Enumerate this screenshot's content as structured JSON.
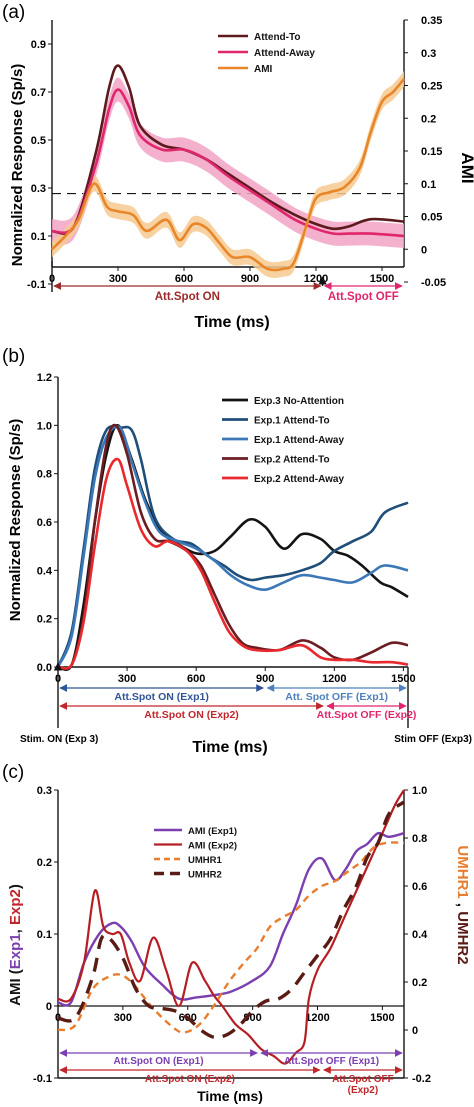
{
  "colors": {
    "dark_red": "#5c1a1d",
    "pink": "#e0266d",
    "pink_band": "#f1a3c4",
    "orange": "#e8862a",
    "orange_band": "#f7c98f",
    "black": "#141414",
    "navy": "#1f4e79",
    "steel": "#3c78b8",
    "maroon": "#6b1d21",
    "red": "#e8292e",
    "purple": "#7b3fb0",
    "crimson": "#b51f24",
    "orange_dash": "#e97d2f",
    "brown_dash": "#5a1b15",
    "att_on_blue": "#2f5597",
    "att_off_blue": "#4f81bd",
    "att_red": "#c0272d"
  },
  "chart_data": [
    {
      "panel": "(a)",
      "type": "line",
      "xlabel": "Time (ms)",
      "ylabel": "Nomralized Response (Sp/s)",
      "ylabel_right": "AMI",
      "xlim": [
        0,
        1600
      ],
      "ylim": [
        -0.1,
        1.0
      ],
      "ylim_right": [
        -0.05,
        0.35
      ],
      "x_ticks": [
        "0",
        "300",
        "600",
        "900",
        "1200",
        "1500"
      ],
      "x_tick_values": [
        0,
        300,
        600,
        900,
        1200,
        1500
      ],
      "y_ticks": [
        "-0.1",
        "0.1",
        "0.3",
        "0.5",
        "0.7",
        "0.9"
      ],
      "y_tick_values": [
        -0.1,
        0.1,
        0.3,
        0.5,
        0.7,
        0.9
      ],
      "y_right_ticks": [
        "-0.05",
        "0",
        "0.05",
        "0.1",
        "0.15",
        "0.2",
        "0.25",
        "0.3",
        "0.35"
      ],
      "y_right_tick_values": [
        -0.05,
        0,
        0.05,
        0.1,
        0.15,
        0.2,
        0.25,
        0.3,
        0.35
      ],
      "dashed_line_right": 0.085,
      "grid": false,
      "legend_position": "top-right",
      "series": [
        {
          "name": "Attend-To",
          "color": "#5c1a1d",
          "axis": "left",
          "x": [
            0,
            100,
            200,
            260,
            300,
            350,
            400,
            500,
            600,
            700,
            800,
            900,
            1000,
            1100,
            1200,
            1280,
            1350,
            1450,
            1600
          ],
          "y": [
            0.12,
            0.14,
            0.45,
            0.72,
            0.81,
            0.72,
            0.56,
            0.48,
            0.46,
            0.42,
            0.36,
            0.3,
            0.24,
            0.19,
            0.15,
            0.13,
            0.14,
            0.17,
            0.16
          ],
          "band": 0.0
        },
        {
          "name": "Attend-Away",
          "color": "#e0266d",
          "axis": "left",
          "x": [
            0,
            100,
            200,
            260,
            300,
            350,
            400,
            500,
            600,
            700,
            800,
            900,
            1000,
            1100,
            1200,
            1280,
            1350,
            1450,
            1600
          ],
          "y": [
            0.12,
            0.14,
            0.4,
            0.63,
            0.71,
            0.64,
            0.52,
            0.46,
            0.46,
            0.42,
            0.35,
            0.29,
            0.23,
            0.17,
            0.13,
            0.11,
            0.11,
            0.11,
            0.1
          ],
          "band": 0.05
        },
        {
          "name": "AMI",
          "color": "#e8862a",
          "axis": "right",
          "x": [
            0,
            60,
            120,
            190,
            250,
            300,
            370,
            430,
            520,
            580,
            640,
            700,
            760,
            820,
            900,
            980,
            1050,
            1100,
            1160,
            1200,
            1260,
            1330,
            1400,
            1450,
            1500,
            1550,
            1600
          ],
          "y": [
            0.0,
            0.02,
            0.045,
            0.1,
            0.065,
            0.058,
            0.052,
            0.028,
            0.045,
            0.014,
            0.038,
            0.033,
            0.01,
            -0.012,
            -0.012,
            -0.03,
            -0.03,
            -0.02,
            0.04,
            0.078,
            0.087,
            0.095,
            0.125,
            0.18,
            0.225,
            0.24,
            0.26
          ],
          "band": 0.012
        }
      ],
      "annotations": [
        {
          "text": "Att.Spot ON",
          "color": "#9c2a2a",
          "from": 0,
          "to": 1230
        },
        {
          "text": "Att.Spot OFF",
          "color": "#e0266d",
          "from": 1230,
          "to": 1600
        }
      ]
    },
    {
      "panel": "(b)",
      "type": "line",
      "xlabel": "Time (ms)",
      "ylabel": "Normalized Response (Sp/s)",
      "xlim": [
        0,
        1520
      ],
      "ylim": [
        0,
        1.2
      ],
      "x_ticks": [
        "0",
        "300",
        "600",
        "900",
        "1200",
        "1500"
      ],
      "x_tick_values": [
        0,
        300,
        600,
        900,
        1200,
        1500
      ],
      "y_ticks": [
        "0.0",
        "0.2",
        "0.4",
        "0.6",
        "0.8",
        "1.0",
        "1.2"
      ],
      "y_tick_values": [
        0,
        0.2,
        0.4,
        0.6,
        0.8,
        1.0,
        1.2
      ],
      "grid": false,
      "legend_position": "top-right",
      "series": [
        {
          "name": "Exp.3 No-Attention",
          "color": "#141414",
          "x": [
            0,
            60,
            110,
            160,
            210,
            260,
            320,
            380,
            450,
            520,
            600,
            680,
            750,
            830,
            900,
            980,
            1060,
            1140,
            1200,
            1260,
            1320,
            1400,
            1450,
            1520
          ],
          "y": [
            0,
            0.01,
            0.25,
            0.6,
            0.88,
            1.0,
            0.86,
            0.69,
            0.56,
            0.51,
            0.47,
            0.48,
            0.54,
            0.61,
            0.58,
            0.49,
            0.55,
            0.53,
            0.48,
            0.46,
            0.42,
            0.35,
            0.33,
            0.29
          ]
        },
        {
          "name": "Exp.1 Attend-To",
          "color": "#1f4e79",
          "x": [
            0,
            60,
            110,
            160,
            210,
            270,
            320,
            360,
            420,
            500,
            580,
            650,
            720,
            780,
            840,
            900,
            980,
            1060,
            1140,
            1200,
            1280,
            1360,
            1420,
            1520
          ],
          "y": [
            0,
            0.15,
            0.48,
            0.82,
            0.98,
            0.99,
            0.98,
            0.86,
            0.62,
            0.53,
            0.51,
            0.46,
            0.42,
            0.38,
            0.36,
            0.37,
            0.38,
            0.4,
            0.43,
            0.48,
            0.52,
            0.56,
            0.64,
            0.68
          ]
        },
        {
          "name": "Exp.1 Attend-Away",
          "color": "#3c78b8",
          "x": [
            0,
            60,
            110,
            160,
            210,
            270,
            320,
            380,
            440,
            520,
            600,
            680,
            750,
            820,
            900,
            980,
            1060,
            1140,
            1200,
            1280,
            1360,
            1420,
            1520
          ],
          "y": [
            0,
            0.13,
            0.45,
            0.78,
            0.95,
            0.99,
            0.85,
            0.68,
            0.56,
            0.52,
            0.49,
            0.44,
            0.38,
            0.34,
            0.32,
            0.35,
            0.38,
            0.37,
            0.36,
            0.35,
            0.39,
            0.42,
            0.4
          ]
        },
        {
          "name": "Exp.2 Attend-To",
          "color": "#6b1d21",
          "x": [
            0,
            60,
            110,
            160,
            210,
            250,
            300,
            360,
            420,
            480,
            560,
            620,
            680,
            740,
            800,
            860,
            960,
            1060,
            1140,
            1200,
            1280,
            1360,
            1450,
            1520
          ],
          "y": [
            0,
            0.01,
            0.2,
            0.6,
            0.92,
            1.0,
            0.88,
            0.64,
            0.53,
            0.52,
            0.48,
            0.42,
            0.3,
            0.18,
            0.1,
            0.08,
            0.07,
            0.11,
            0.08,
            0.04,
            0.03,
            0.06,
            0.1,
            0.09
          ]
        },
        {
          "name": "Exp.2 Attend-Away",
          "color": "#e8292e",
          "x": [
            0,
            60,
            110,
            160,
            210,
            260,
            300,
            360,
            420,
            480,
            560,
            620,
            680,
            740,
            800,
            860,
            960,
            1060,
            1140,
            1200,
            1280,
            1360,
            1450,
            1520
          ],
          "y": [
            0,
            0.01,
            0.18,
            0.5,
            0.78,
            0.86,
            0.75,
            0.57,
            0.5,
            0.52,
            0.48,
            0.4,
            0.27,
            0.15,
            0.09,
            0.07,
            0.07,
            0.09,
            0.04,
            0.03,
            0.03,
            0.02,
            0.02,
            0.01
          ]
        }
      ],
      "annotations": [
        {
          "text": "Att.Spot ON (Exp1)",
          "color": "#2f5597",
          "from": 0,
          "to": 900,
          "row": 1
        },
        {
          "text": "Att. Spot OFF (Exp1)",
          "color": "#4f81bd",
          "from": 900,
          "to": 1520,
          "row": 1
        },
        {
          "text": "Att.Spot ON (Exp2)",
          "color": "#c0272d",
          "from": 0,
          "to": 1160,
          "row": 2
        },
        {
          "text": "Att.Spot OFF (Exp2)",
          "color": "#e0266d",
          "from": 1160,
          "to": 1520,
          "row": 2
        }
      ],
      "footer_left": "Stim. ON (Exp 3)",
      "footer_right": "Stim OFF (Exp3)"
    },
    {
      "panel": "(c)",
      "type": "line",
      "xlabel": "Time (ms)",
      "ylabel_parts": [
        "AMI (",
        "Exp1",
        ", ",
        "Exp2",
        ")"
      ],
      "ylabel_right_parts": [
        "UMHR1",
        " , ",
        "UMHR2"
      ],
      "xlim": [
        0,
        1600
      ],
      "ylim": [
        -0.1,
        0.3
      ],
      "ylim_right": [
        -0.2,
        1.0
      ],
      "x_ticks": [
        "0",
        "300",
        "600",
        "900",
        "1200",
        "1500"
      ],
      "x_tick_values": [
        0,
        300,
        600,
        900,
        1200,
        1500
      ],
      "y_ticks": [
        "-0.1",
        "0",
        "0.1",
        "0.2",
        "0.3"
      ],
      "y_tick_values": [
        -0.1,
        0,
        0.1,
        0.2,
        0.3
      ],
      "y_right_ticks": [
        "-0.2",
        "0",
        "0.2",
        "0.4",
        "0.6",
        "0.8",
        "1.0"
      ],
      "y_right_tick_values": [
        -0.2,
        0,
        0.2,
        0.4,
        0.6,
        0.8,
        1.0
      ],
      "grid": false,
      "legend_position": "top-left",
      "series": [
        {
          "name": "AMI (Exp1)",
          "color": "#7b3fb0",
          "axis": "left",
          "dash": "solid",
          "width": 2.4,
          "x": [
            0,
            60,
            120,
            190,
            250,
            290,
            340,
            400,
            480,
            560,
            640,
            720,
            800,
            900,
            980,
            1040,
            1100,
            1160,
            1220,
            1280,
            1330,
            1380,
            1430,
            1480,
            1530,
            1600
          ],
          "y": [
            0.005,
            0.005,
            0.06,
            0.1,
            0.115,
            0.11,
            0.09,
            0.055,
            0.03,
            0.01,
            0.012,
            0.015,
            0.02,
            0.035,
            0.055,
            0.1,
            0.14,
            0.19,
            0.205,
            0.175,
            0.19,
            0.215,
            0.225,
            0.24,
            0.235,
            0.24
          ]
        },
        {
          "name": "AMI (Exp2)",
          "color": "#b51f24",
          "axis": "left",
          "dash": "solid",
          "width": 2.2,
          "x": [
            0,
            60,
            120,
            170,
            210,
            250,
            290,
            330,
            380,
            440,
            500,
            560,
            620,
            680,
            720,
            760,
            820,
            880,
            940,
            1000,
            1050,
            1100,
            1140,
            1160,
            1200,
            1260,
            1320,
            1380,
            1440,
            1500,
            1560,
            1600
          ],
          "y": [
            0.01,
            0.01,
            0.06,
            0.16,
            0.11,
            0.1,
            0.1,
            0.06,
            0.035,
            0.095,
            0.05,
            0.0,
            0.06,
            0.035,
            0.015,
            0.0,
            -0.025,
            -0.04,
            -0.06,
            -0.07,
            -0.08,
            -0.065,
            -0.05,
            0.01,
            0.05,
            0.08,
            0.12,
            0.16,
            0.2,
            0.24,
            0.28,
            0.3
          ]
        },
        {
          "name": "UMHR1",
          "color": "#e97d2f",
          "axis": "right",
          "dash": "dashed",
          "width": 2.4,
          "x": [
            0,
            80,
            160,
            230,
            290,
            350,
            430,
            520,
            580,
            650,
            720,
            790,
            860,
            920,
            980,
            1040,
            1100,
            1160,
            1220,
            1280,
            1340,
            1400,
            1460,
            1520,
            1600
          ],
          "y": [
            0.0,
            0.02,
            0.17,
            0.22,
            0.23,
            0.19,
            0.1,
            0.02,
            -0.01,
            0.02,
            0.1,
            0.2,
            0.28,
            0.34,
            0.43,
            0.47,
            0.5,
            0.56,
            0.6,
            0.62,
            0.66,
            0.7,
            0.76,
            0.78,
            0.78
          ]
        },
        {
          "name": "UMHR2",
          "color": "#5a1b15",
          "axis": "right",
          "dash": "dashed-thick",
          "width": 3.4,
          "x": [
            0,
            80,
            160,
            200,
            240,
            300,
            360,
            420,
            480,
            540,
            600,
            660,
            720,
            780,
            840,
            900,
            960,
            1020,
            1080,
            1140,
            1200,
            1260,
            1320,
            1380,
            1430,
            1480,
            1530,
            1600
          ],
          "y": [
            0.05,
            0.05,
            0.22,
            0.38,
            0.38,
            0.3,
            0.17,
            0.1,
            0.09,
            0.08,
            0.05,
            0.0,
            -0.03,
            -0.02,
            0.02,
            0.08,
            0.12,
            0.13,
            0.17,
            0.24,
            0.31,
            0.38,
            0.5,
            0.6,
            0.72,
            0.78,
            0.9,
            0.95
          ]
        }
      ],
      "annotations": [
        {
          "text": "Att.Spot ON (Exp1)",
          "color": "#7b3fb0",
          "from": 0,
          "to": 930,
          "row": 1
        },
        {
          "text": "Att.Spot OFF (Exp1)",
          "color": "#7b3fb0",
          "from": 930,
          "to": 1600,
          "row": 1
        },
        {
          "text": "Att.Spot ON (Exp2)",
          "color": "#c0272d",
          "from": 0,
          "to": 1220,
          "row": 2
        },
        {
          "text": "Att.Spot OFF",
          "text2": "(Exp2)",
          "color": "#c0272d",
          "from": 1220,
          "to": 1600,
          "row": 2
        }
      ]
    }
  ]
}
